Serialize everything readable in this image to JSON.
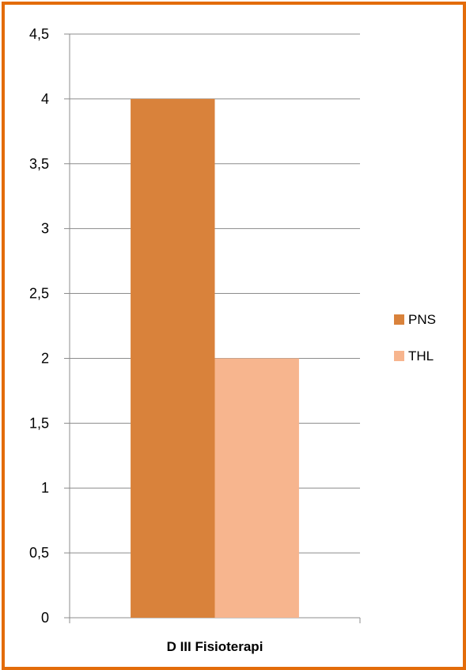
{
  "chart_data": {
    "type": "bar",
    "categories": [
      "D III Fisioterapi"
    ],
    "series": [
      {
        "name": "PNS",
        "values": [
          4
        ],
        "color": "#D9823B"
      },
      {
        "name": "THL",
        "values": [
          2
        ],
        "color": "#F7B58E"
      }
    ],
    "ylim": [
      0,
      4.5
    ],
    "yticks": [
      "0",
      "0,5",
      "1",
      "1,5",
      "2",
      "2,5",
      "3",
      "3,5",
      "4",
      "4,5"
    ],
    "grid": true,
    "legend_position": "right",
    "title": "",
    "xlabel": "",
    "ylabel": ""
  },
  "colors": {
    "frame_border": "#E36C0A",
    "gridline": "#8C8C8C"
  }
}
